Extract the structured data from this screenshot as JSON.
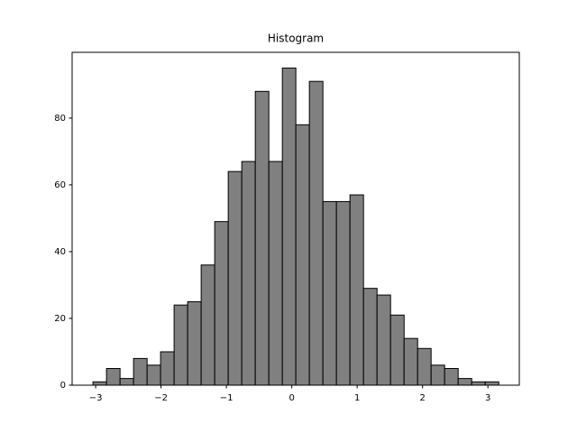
{
  "chart_data": {
    "type": "histogram",
    "title": "Histogram",
    "bins": [
      -3.041,
      -2.834,
      -2.627,
      -2.42,
      -2.213,
      -2.007,
      -1.8,
      -1.593,
      -1.386,
      -1.179,
      -0.972,
      -0.765,
      -0.558,
      -0.351,
      -0.144,
      0.062,
      0.269,
      0.476,
      0.683,
      0.89,
      1.097,
      1.304,
      1.511,
      1.718,
      1.925,
      2.131,
      2.338,
      2.545,
      2.752,
      2.959,
      3.166
    ],
    "values": [
      1,
      5,
      2,
      8,
      6,
      10,
      24,
      25,
      36,
      49,
      64,
      67,
      88,
      67,
      95,
      78,
      91,
      55,
      55,
      57,
      29,
      27,
      21,
      14,
      11,
      6,
      5,
      2,
      1,
      1
    ],
    "color": "#808080",
    "edgecolor": "#000000",
    "xlim": [
      -3.36,
      3.48
    ],
    "xticks": [
      {
        "value": -3,
        "label": "−3"
      },
      {
        "value": -2,
        "label": "−2"
      },
      {
        "value": -1,
        "label": "−1"
      },
      0,
      1,
      2,
      3
    ],
    "ylim": [
      0,
      99.7
    ],
    "yticks": [
      0,
      20,
      40,
      60,
      80
    ]
  }
}
